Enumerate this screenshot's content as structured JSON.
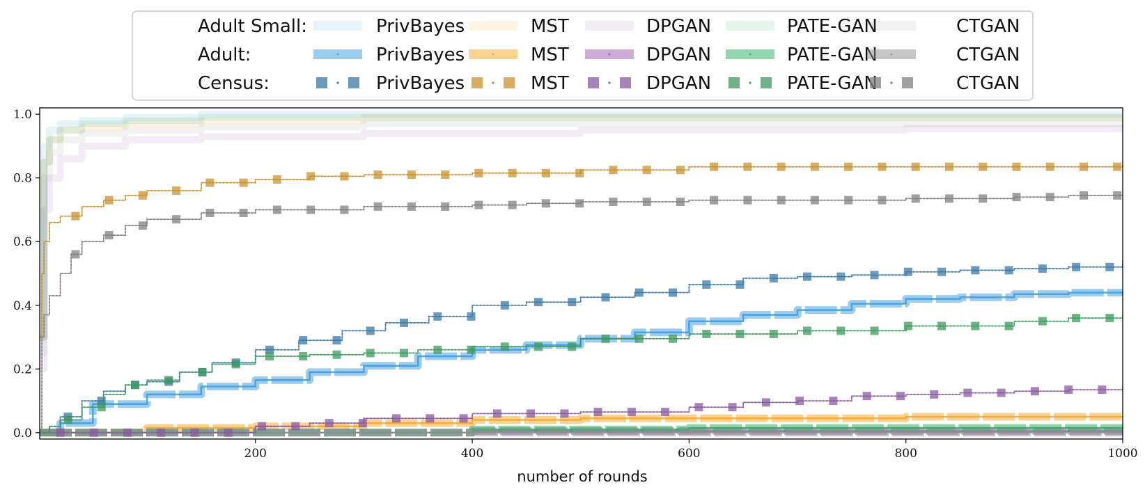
{
  "colors": {
    "PrivBayes": "#3a9ade",
    "MST": "#f5a623",
    "DPGAN": "#9b59b6",
    "PATE-GAN": "#27ae60",
    "CTGAN": "#909090",
    "PrivBayes_census": "#3a78a6",
    "MST_census": "#c8912d",
    "DPGAN_census": "#8a5aa3",
    "PATE-GAN_census": "#3c9a5e",
    "CTGAN_census": "#808080"
  },
  "legend": {
    "rows": [
      {
        "label": "Adult Small:",
        "style": "faint"
      },
      {
        "label": "Adult:",
        "style": "thick"
      },
      {
        "label": "Census:",
        "style": "dotted-square"
      }
    ],
    "methods": [
      "PrivBayes",
      "MST",
      "DPGAN",
      "PATE-GAN",
      "CTGAN"
    ]
  },
  "chart_data": {
    "type": "line",
    "title": "",
    "xlabel": "number of rounds",
    "ylabel": "",
    "xlim": [
      1,
      1000
    ],
    "ylim": [
      -0.02,
      1.02
    ],
    "xticks": [
      200,
      400,
      600,
      800,
      1000
    ],
    "yticks": [
      0.0,
      0.2,
      0.4,
      0.6,
      0.8,
      1.0
    ],
    "xtick_labels": [
      "200",
      "400",
      "600",
      "800",
      "1000"
    ],
    "ytick_labels": [
      "0.0",
      "0.2",
      "0.4",
      "0.6",
      "0.8",
      "1.0"
    ],
    "series": [
      {
        "dataset": "Adult Small",
        "method": "PrivBayes",
        "x": [
          1,
          5,
          10,
          20,
          40,
          80,
          150,
          300,
          1000
        ],
        "y": [
          0.3,
          0.9,
          0.95,
          0.97,
          0.98,
          0.99,
          1.0,
          1.0,
          1.0
        ]
      },
      {
        "dataset": "Adult Small",
        "method": "MST",
        "x": [
          1,
          5,
          10,
          20,
          40,
          80,
          150,
          300,
          1000
        ],
        "y": [
          0.3,
          0.85,
          0.92,
          0.95,
          0.96,
          0.97,
          0.98,
          0.99,
          0.99
        ]
      },
      {
        "dataset": "Adult Small",
        "method": "DPGAN",
        "x": [
          1,
          5,
          10,
          20,
          40,
          80,
          150,
          300,
          500,
          800,
          1000
        ],
        "y": [
          0.2,
          0.7,
          0.8,
          0.86,
          0.9,
          0.92,
          0.93,
          0.94,
          0.95,
          0.955,
          0.955
        ]
      },
      {
        "dataset": "Adult Small",
        "method": "PATE-GAN",
        "x": [
          1,
          5,
          10,
          20,
          40,
          80,
          150,
          300,
          1000
        ],
        "y": [
          0.3,
          0.85,
          0.92,
          0.95,
          0.97,
          0.98,
          0.99,
          0.99,
          0.99
        ]
      },
      {
        "dataset": "Adult Small",
        "method": "CTGAN",
        "x": [
          1,
          5,
          10,
          20,
          40,
          80,
          150,
          300,
          1000
        ],
        "y": [
          0.25,
          0.8,
          0.88,
          0.92,
          0.94,
          0.95,
          0.96,
          0.97,
          0.97
        ]
      },
      {
        "dataset": "Adult",
        "method": "PrivBayes",
        "x": [
          1,
          20,
          50,
          100,
          150,
          200,
          250,
          300,
          350,
          400,
          450,
          500,
          550,
          600,
          650,
          700,
          750,
          800,
          850,
          900,
          950,
          1000
        ],
        "y": [
          0.0,
          0.03,
          0.09,
          0.12,
          0.145,
          0.165,
          0.19,
          0.21,
          0.24,
          0.26,
          0.275,
          0.295,
          0.315,
          0.35,
          0.37,
          0.385,
          0.405,
          0.42,
          0.425,
          0.435,
          0.44,
          0.44
        ]
      },
      {
        "dataset": "Adult",
        "method": "MST",
        "x": [
          1,
          100,
          200,
          300,
          400,
          500,
          600,
          700,
          800,
          900,
          1000
        ],
        "y": [
          0.0,
          0.015,
          0.02,
          0.03,
          0.04,
          0.045,
          0.045,
          0.045,
          0.05,
          0.05,
          0.05
        ]
      },
      {
        "dataset": "Adult",
        "method": "DPGAN",
        "x": [
          1,
          200,
          400,
          600,
          800,
          1000
        ],
        "y": [
          0.0,
          0.0,
          0.005,
          0.005,
          0.005,
          0.005
        ]
      },
      {
        "dataset": "Adult",
        "method": "PATE-GAN",
        "x": [
          1,
          200,
          400,
          600,
          800,
          1000
        ],
        "y": [
          0.0,
          0.0,
          0.01,
          0.015,
          0.015,
          0.015
        ]
      },
      {
        "dataset": "Adult",
        "method": "CTGAN",
        "x": [
          1,
          200,
          400,
          600,
          800,
          1000
        ],
        "y": [
          0.0,
          0.0,
          0.0,
          0.0,
          0.0,
          0.0
        ]
      },
      {
        "dataset": "Census",
        "method": "PrivBayes",
        "x": [
          1,
          10,
          20,
          40,
          60,
          80,
          100,
          130,
          160,
          200,
          240,
          280,
          320,
          360,
          400,
          450,
          500,
          550,
          600,
          650,
          700,
          750,
          800,
          850,
          900,
          950,
          1000
        ],
        "y": [
          0.0,
          0.02,
          0.05,
          0.1,
          0.13,
          0.15,
          0.16,
          0.19,
          0.22,
          0.26,
          0.29,
          0.32,
          0.345,
          0.365,
          0.4,
          0.41,
          0.425,
          0.44,
          0.465,
          0.485,
          0.49,
          0.495,
          0.505,
          0.51,
          0.515,
          0.52,
          0.54
        ]
      },
      {
        "dataset": "Census",
        "method": "MST",
        "x": [
          1,
          3,
          5,
          10,
          20,
          40,
          60,
          80,
          100,
          150,
          200,
          250,
          300,
          400,
          500,
          600,
          700,
          800,
          900,
          1000
        ],
        "y": [
          0.3,
          0.5,
          0.6,
          0.66,
          0.68,
          0.71,
          0.73,
          0.745,
          0.76,
          0.785,
          0.795,
          0.805,
          0.81,
          0.815,
          0.825,
          0.835,
          0.835,
          0.835,
          0.835,
          0.84
        ]
      },
      {
        "dataset": "Census",
        "method": "DPGAN",
        "x": [
          1,
          100,
          200,
          250,
          300,
          400,
          500,
          600,
          650,
          700,
          750,
          800,
          850,
          900,
          950,
          1000
        ],
        "y": [
          0.0,
          0.0,
          0.02,
          0.03,
          0.045,
          0.06,
          0.065,
          0.08,
          0.095,
          0.1,
          0.115,
          0.12,
          0.125,
          0.13,
          0.135,
          0.145
        ]
      },
      {
        "dataset": "Census",
        "method": "PATE-GAN",
        "x": [
          1,
          10,
          20,
          40,
          60,
          80,
          100,
          130,
          160,
          200,
          250,
          300,
          350,
          400,
          500,
          600,
          700,
          800,
          900,
          950,
          1000
        ],
        "y": [
          0.0,
          0.02,
          0.04,
          0.08,
          0.12,
          0.15,
          0.165,
          0.19,
          0.215,
          0.24,
          0.245,
          0.25,
          0.26,
          0.27,
          0.295,
          0.31,
          0.32,
          0.335,
          0.35,
          0.36,
          0.37
        ]
      },
      {
        "dataset": "Census",
        "method": "CTGAN",
        "x": [
          1,
          3,
          5,
          10,
          20,
          30,
          40,
          60,
          80,
          100,
          150,
          200,
          300,
          400,
          450,
          500,
          600,
          800,
          900,
          950,
          1000
        ],
        "y": [
          0.0,
          0.3,
          0.37,
          0.43,
          0.5,
          0.56,
          0.6,
          0.62,
          0.65,
          0.67,
          0.69,
          0.7,
          0.71,
          0.715,
          0.72,
          0.725,
          0.73,
          0.735,
          0.74,
          0.745,
          0.745
        ]
      }
    ]
  }
}
